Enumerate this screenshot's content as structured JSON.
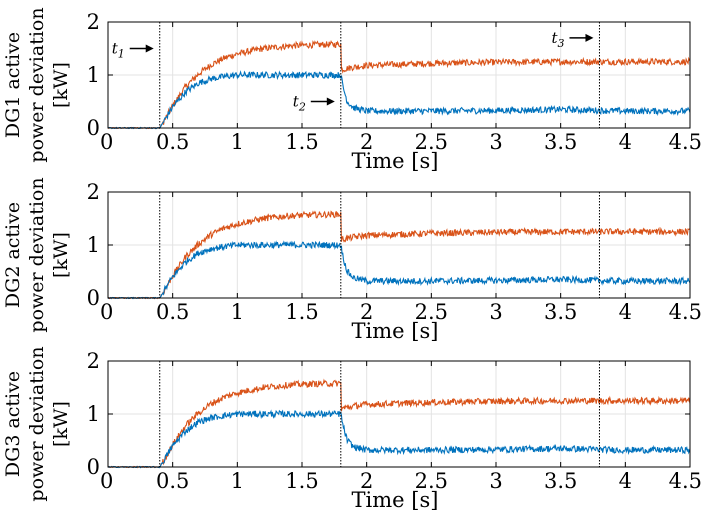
{
  "chart_data": [
    {
      "type": "line",
      "ylabel_line1": "DG1 active",
      "ylabel_line2": "power deviation",
      "ylabel_line3": "[kW]",
      "xlabel": "Time [s]",
      "xlim": [
        0,
        4.5
      ],
      "ylim": [
        0,
        2
      ],
      "xticks": [
        "0",
        "0.5",
        "1",
        "1.5",
        "2",
        "2.5",
        "3",
        "3.5",
        "4",
        "4.5"
      ],
      "yticks": [
        "0",
        "1",
        "2"
      ],
      "grid": true,
      "event_lines": [
        0.4,
        1.8,
        3.8
      ],
      "annotations": [
        {
          "label": "t",
          "sub": "1",
          "x": 0.4,
          "y": 1.5,
          "side": "left"
        },
        {
          "label": "t",
          "sub": "2",
          "x": 1.8,
          "y": 0.5,
          "side": "left"
        },
        {
          "label": "t",
          "sub": "3",
          "x": 3.8,
          "y": 1.7,
          "side": "left"
        }
      ],
      "series": [
        {
          "name": "orange",
          "color": "#D95319",
          "x": [
            0,
            0.4,
            0.45,
            0.5,
            0.6,
            0.7,
            0.8,
            0.9,
            1.0,
            1.2,
            1.4,
            1.6,
            1.8,
            1.8,
            1.9,
            2.0,
            2.5,
            3.0,
            3.5,
            3.8,
            4.0,
            4.5
          ],
          "y": [
            0,
            0,
            0.2,
            0.42,
            0.78,
            1.02,
            1.2,
            1.32,
            1.4,
            1.5,
            1.55,
            1.57,
            1.58,
            1.1,
            1.15,
            1.18,
            1.22,
            1.24,
            1.25,
            1.25,
            1.25,
            1.25
          ]
        },
        {
          "name": "blue",
          "color": "#0072BD",
          "x": [
            0,
            0.4,
            0.45,
            0.5,
            0.6,
            0.7,
            0.8,
            0.9,
            1.0,
            1.2,
            1.4,
            1.6,
            1.8,
            1.82,
            1.85,
            1.9,
            2.0,
            2.5,
            3.0,
            3.5,
            3.8,
            4.0,
            4.5
          ],
          "y": [
            0,
            0,
            0.2,
            0.4,
            0.68,
            0.85,
            0.93,
            0.97,
            1.0,
            1.0,
            1.0,
            1.0,
            1.0,
            0.75,
            0.5,
            0.38,
            0.32,
            0.32,
            0.33,
            0.35,
            0.33,
            0.32,
            0.32
          ]
        }
      ]
    },
    {
      "type": "line",
      "ylabel_line1": "DG2 active",
      "ylabel_line2": "power deviation",
      "ylabel_line3": "[kW]",
      "xlabel": "Time [s]",
      "xlim": [
        0,
        4.5
      ],
      "ylim": [
        0,
        2
      ],
      "xticks": [
        "0",
        "0.5",
        "1",
        "1.5",
        "2",
        "2.5",
        "3",
        "3.5",
        "4",
        "4.5"
      ],
      "yticks": [
        "0",
        "1",
        "2"
      ],
      "grid": true,
      "event_lines": [
        0.4,
        1.8,
        3.8
      ],
      "annotations": [],
      "series": [
        {
          "name": "orange",
          "color": "#D95319",
          "x": [
            0,
            0.4,
            0.45,
            0.5,
            0.6,
            0.7,
            0.8,
            0.9,
            1.0,
            1.2,
            1.4,
            1.6,
            1.8,
            1.8,
            1.9,
            2.0,
            2.5,
            3.0,
            3.5,
            3.8,
            4.0,
            4.5
          ],
          "y": [
            0,
            0,
            0.2,
            0.42,
            0.78,
            1.02,
            1.2,
            1.32,
            1.4,
            1.5,
            1.55,
            1.57,
            1.58,
            1.1,
            1.15,
            1.18,
            1.22,
            1.24,
            1.25,
            1.25,
            1.25,
            1.25
          ]
        },
        {
          "name": "blue",
          "color": "#0072BD",
          "x": [
            0,
            0.4,
            0.45,
            0.5,
            0.6,
            0.7,
            0.8,
            0.9,
            1.0,
            1.2,
            1.4,
            1.6,
            1.8,
            1.82,
            1.85,
            1.9,
            2.0,
            2.5,
            3.0,
            3.5,
            3.8,
            4.0,
            4.5
          ],
          "y": [
            0,
            0,
            0.2,
            0.4,
            0.68,
            0.85,
            0.93,
            0.97,
            1.0,
            1.0,
            1.0,
            1.0,
            1.0,
            0.75,
            0.5,
            0.38,
            0.32,
            0.32,
            0.33,
            0.35,
            0.33,
            0.32,
            0.32
          ]
        }
      ]
    },
    {
      "type": "line",
      "ylabel_line1": "DG3 active",
      "ylabel_line2": "power deviation",
      "ylabel_line3": "[kW]",
      "xlabel": "Time [s]",
      "xlim": [
        0,
        4.5
      ],
      "ylim": [
        0,
        2
      ],
      "xticks": [
        "0",
        "0.5",
        "1",
        "1.5",
        "2",
        "2.5",
        "3",
        "3.5",
        "4",
        "4.5"
      ],
      "yticks": [
        "0",
        "1",
        "2"
      ],
      "grid": true,
      "event_lines": [
        0.4,
        1.8,
        3.8
      ],
      "annotations": [],
      "series": [
        {
          "name": "orange",
          "color": "#D95319",
          "x": [
            0,
            0.4,
            0.45,
            0.5,
            0.6,
            0.7,
            0.8,
            0.9,
            1.0,
            1.2,
            1.4,
            1.6,
            1.8,
            1.8,
            1.9,
            2.0,
            2.5,
            3.0,
            3.5,
            3.8,
            4.0,
            4.5
          ],
          "y": [
            0,
            0,
            0.2,
            0.42,
            0.78,
            1.02,
            1.2,
            1.32,
            1.4,
            1.5,
            1.55,
            1.57,
            1.58,
            1.1,
            1.15,
            1.18,
            1.22,
            1.24,
            1.25,
            1.25,
            1.25,
            1.25
          ]
        },
        {
          "name": "blue",
          "color": "#0072BD",
          "x": [
            0,
            0.4,
            0.45,
            0.5,
            0.6,
            0.7,
            0.8,
            0.9,
            1.0,
            1.2,
            1.4,
            1.6,
            1.8,
            1.82,
            1.85,
            1.9,
            2.0,
            2.5,
            3.0,
            3.5,
            3.8,
            4.0,
            4.5
          ],
          "y": [
            0,
            0,
            0.2,
            0.4,
            0.68,
            0.85,
            0.93,
            0.97,
            1.0,
            1.0,
            1.0,
            1.0,
            1.0,
            0.75,
            0.5,
            0.38,
            0.32,
            0.32,
            0.33,
            0.35,
            0.33,
            0.32,
            0.32
          ]
        }
      ]
    }
  ]
}
